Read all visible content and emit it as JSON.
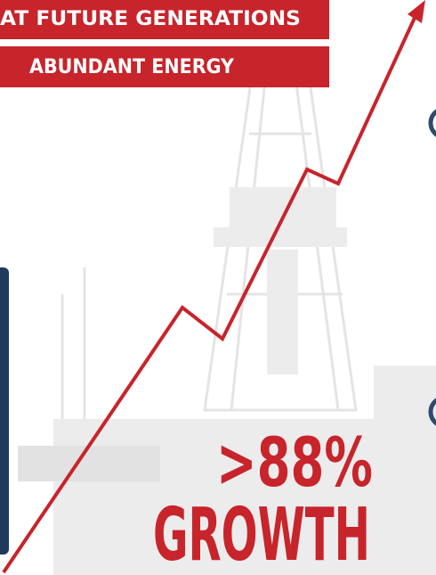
{
  "banner": {
    "line1": "AT FUTURE GENERATIONS",
    "line2": "ABUNDANT ENERGY"
  },
  "stat": {
    "value": ">88%",
    "label": "GROWTH"
  }
}
